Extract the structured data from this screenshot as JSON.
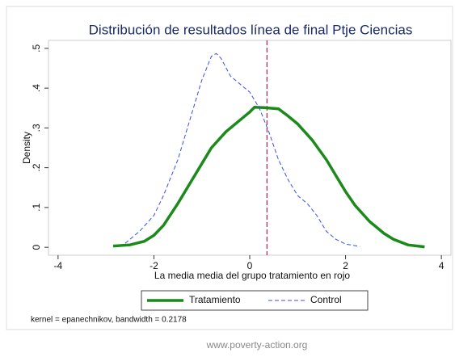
{
  "chart_data": {
    "type": "line",
    "title": "Distribución de resultados línea de final Ptje Ciencias",
    "xlabel": "La media media del grupo tratamiento en rojo",
    "ylabel": "Density",
    "note": "kernel = epanechnikov, bandwidth = 0.2178",
    "source": "www.poverty-action.org",
    "xlim": [
      -4.2,
      4.2
    ],
    "ylim": [
      -0.02,
      0.52
    ],
    "xticks": [
      -4,
      -2,
      0,
      2,
      4
    ],
    "yticks": [
      0,
      {
        "value": 0.1,
        "label": ".1"
      },
      {
        "value": 0.2,
        "label": ".2"
      },
      {
        "value": 0.3,
        "label": ".3"
      },
      {
        "value": 0.4,
        "label": ".4"
      },
      {
        "value": 0.5,
        "label": ".5"
      }
    ],
    "reference_line": {
      "x": 0.36,
      "color": "#c0305a"
    },
    "legend": "bottom",
    "series": [
      {
        "name": "Tratamiento",
        "color": "#1a8a1a",
        "dash": false,
        "x": [
          -2.85,
          -2.5,
          -2.2,
          -2,
          -1.8,
          -1.5,
          -1.2,
          -1,
          -0.8,
          -0.5,
          -0.3,
          0,
          0.1,
          0.3,
          0.6,
          0.8,
          1,
          1.3,
          1.6,
          1.8,
          2,
          2.2,
          2.5,
          2.8,
          3,
          3.3,
          3.65
        ],
        "values": [
          0.003,
          0.006,
          0.015,
          0.03,
          0.055,
          0.11,
          0.17,
          0.21,
          0.25,
          0.29,
          0.31,
          0.34,
          0.352,
          0.351,
          0.348,
          0.33,
          0.31,
          0.27,
          0.22,
          0.18,
          0.14,
          0.105,
          0.065,
          0.035,
          0.02,
          0.006,
          0.001
        ]
      },
      {
        "name": "Control",
        "color": "#3a4ee8",
        "dash": true,
        "x": [
          -2.6,
          -2.3,
          -2,
          -1.8,
          -1.5,
          -1.2,
          -1,
          -0.8,
          -0.7,
          -0.6,
          -0.4,
          -0.2,
          0,
          0.2,
          0.4,
          0.6,
          0.8,
          1,
          1.2,
          1.4,
          1.6,
          1.8,
          2,
          2.3
        ],
        "values": [
          0.01,
          0.04,
          0.08,
          0.13,
          0.22,
          0.34,
          0.42,
          0.48,
          0.487,
          0.475,
          0.43,
          0.41,
          0.39,
          0.35,
          0.29,
          0.22,
          0.17,
          0.13,
          0.11,
          0.08,
          0.04,
          0.02,
          0.008,
          0.002
        ]
      }
    ]
  }
}
